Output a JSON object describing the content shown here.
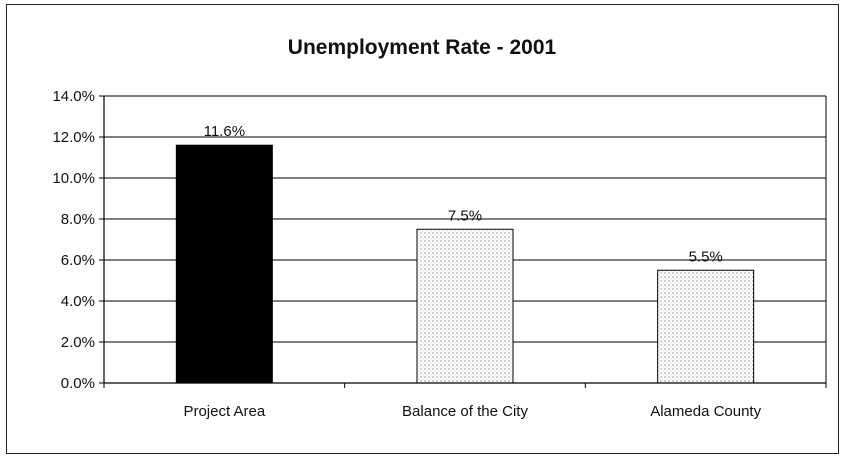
{
  "chart_data": {
    "type": "bar",
    "title": "Unemployment Rate - 2001",
    "xlabel": "",
    "ylabel": "",
    "categories": [
      "Project Area",
      "Balance of the City",
      "Alameda County"
    ],
    "values": [
      11.6,
      7.5,
      5.5
    ],
    "data_labels": [
      "11.6%",
      "7.5%",
      "5.5%"
    ],
    "ylim": [
      0,
      14
    ],
    "yticks": [
      0,
      2,
      4,
      6,
      8,
      10,
      12,
      14
    ],
    "ytick_labels": [
      "0.0%",
      "2.0%",
      "4.0%",
      "6.0%",
      "8.0%",
      "10.0%",
      "12.0%",
      "14.0%"
    ],
    "grid": true,
    "legend": "none",
    "bar_styles": [
      "solid",
      "dotted",
      "dotted"
    ],
    "colors": {
      "solid": "#000000",
      "dotted": "#8a8a8a",
      "grid": "#000000"
    }
  }
}
